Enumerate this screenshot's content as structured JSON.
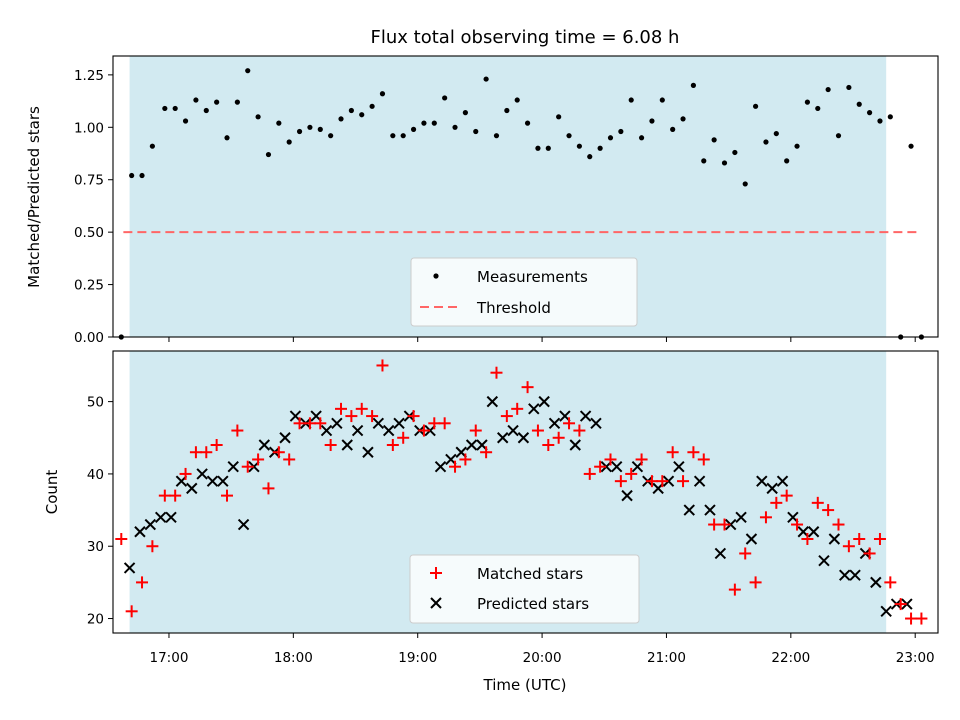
{
  "chart_data": [
    {
      "type": "scatter",
      "title": "Flux total observing time = 6.08 h",
      "xlabel": "",
      "ylabel": "Matched/Predicted stars",
      "ylim": [
        0,
        1.34
      ],
      "xlim": [
        "16:33",
        "23:11"
      ],
      "yticks": [
        "0.00",
        "0.25",
        "0.50",
        "0.75",
        "1.00",
        "1.25"
      ],
      "ytick_values": [
        0,
        0.25,
        0.5,
        0.75,
        1.0,
        1.25
      ],
      "observing_window": {
        "start": "16:41",
        "end": "22:46",
        "color": "#add8e6"
      },
      "legend": {
        "position": "lower center",
        "entries": [
          "Measurements",
          "Threshold"
        ]
      },
      "threshold": {
        "name": "Threshold",
        "y": 0.5,
        "x_start": "16:38",
        "x_end": "23:02",
        "color": "#ff6666"
      },
      "series": [
        {
          "name": "Measurements",
          "color": "#000000",
          "x": [
            "16:37",
            "16:42",
            "16:47",
            "16:52",
            "16:58",
            "17:03",
            "17:08",
            "17:13",
            "17:18",
            "17:23",
            "17:28",
            "17:33",
            "17:38",
            "17:43",
            "17:48",
            "17:53",
            "17:58",
            "18:03",
            "18:08",
            "18:13",
            "18:18",
            "18:23",
            "18:28",
            "18:33",
            "18:38",
            "18:43",
            "18:48",
            "18:53",
            "18:58",
            "19:03",
            "19:08",
            "19:13",
            "19:18",
            "19:23",
            "19:28",
            "19:33",
            "19:38",
            "19:43",
            "19:48",
            "19:53",
            "19:58",
            "20:03",
            "20:08",
            "20:13",
            "20:18",
            "20:23",
            "20:28",
            "20:33",
            "20:38",
            "20:43",
            "20:48",
            "20:53",
            "20:58",
            "21:03",
            "21:08",
            "21:13",
            "21:18",
            "21:23",
            "21:28",
            "21:33",
            "21:38",
            "21:43",
            "21:48",
            "21:53",
            "21:58",
            "22:03",
            "22:08",
            "22:13",
            "22:18",
            "22:23",
            "22:28",
            "22:33",
            "22:38",
            "22:43",
            "22:48",
            "22:53",
            "22:58",
            "23:03"
          ],
          "y": [
            0.0,
            0.77,
            0.77,
            0.91,
            1.09,
            1.09,
            1.03,
            1.13,
            1.08,
            1.12,
            0.95,
            1.12,
            1.27,
            1.05,
            0.87,
            1.02,
            0.93,
            0.98,
            1.0,
            0.99,
            0.96,
            1.04,
            1.08,
            1.06,
            1.1,
            1.16,
            0.96,
            0.96,
            0.99,
            1.02,
            1.02,
            1.14,
            1.0,
            1.07,
            0.98,
            1.23,
            0.96,
            1.08,
            1.13,
            1.02,
            0.9,
            0.9,
            1.05,
            0.96,
            0.91,
            0.86,
            0.9,
            0.95,
            0.98,
            1.13,
            0.95,
            1.03,
            1.13,
            0.99,
            1.04,
            1.2,
            0.84,
            0.94,
            0.83,
            0.88,
            0.73,
            1.1,
            0.93,
            0.97,
            0.84,
            0.91,
            1.12,
            1.09,
            1.18,
            0.96,
            1.19,
            1.11,
            1.07,
            1.03,
            1.05,
            0.0,
            0.91,
            0.0
          ]
        }
      ]
    },
    {
      "type": "scatter",
      "title": "",
      "xlabel": "Time (UTC)",
      "ylabel": "Count",
      "ylim": [
        18,
        57
      ],
      "xlim": [
        "16:33",
        "23:11"
      ],
      "yticks": [
        "20",
        "30",
        "40",
        "50"
      ],
      "ytick_values": [
        20,
        30,
        40,
        50
      ],
      "xticks": [
        "17:00",
        "18:00",
        "19:00",
        "20:00",
        "21:00",
        "22:00",
        "23:00"
      ],
      "observing_window": {
        "start": "16:41",
        "end": "22:46",
        "color": "#add8e6"
      },
      "legend": {
        "position": "lower center",
        "entries": [
          "Matched stars",
          "Predicted stars"
        ]
      },
      "series": [
        {
          "name": "Matched stars",
          "marker": "plus",
          "color": "#ff0000",
          "x": [
            "16:37",
            "16:42",
            "16:47",
            "16:52",
            "16:58",
            "17:03",
            "17:08",
            "17:13",
            "17:18",
            "17:23",
            "17:28",
            "17:33",
            "17:38",
            "17:43",
            "17:48",
            "17:53",
            "17:58",
            "18:03",
            "18:08",
            "18:13",
            "18:18",
            "18:23",
            "18:28",
            "18:33",
            "18:38",
            "18:43",
            "18:48",
            "18:53",
            "18:58",
            "19:03",
            "19:08",
            "19:13",
            "19:18",
            "19:23",
            "19:28",
            "19:33",
            "19:38",
            "19:43",
            "19:48",
            "19:53",
            "19:58",
            "20:03",
            "20:08",
            "20:13",
            "20:18",
            "20:23",
            "20:28",
            "20:33",
            "20:38",
            "20:43",
            "20:48",
            "20:53",
            "20:58",
            "21:03",
            "21:08",
            "21:13",
            "21:18",
            "21:23",
            "21:28",
            "21:33",
            "21:38",
            "21:43",
            "21:48",
            "21:53",
            "21:58",
            "22:03",
            "22:08",
            "22:13",
            "22:18",
            "22:23",
            "22:28",
            "22:33",
            "22:38",
            "22:43",
            "22:48",
            "22:53",
            "22:58",
            "23:03"
          ],
          "y": [
            31,
            21,
            25,
            30,
            37,
            37,
            40,
            43,
            43,
            44,
            37,
            46,
            41,
            42,
            38,
            43,
            42,
            47,
            47,
            47,
            44,
            49,
            48,
            49,
            48,
            55,
            44,
            45,
            48,
            46,
            47,
            47,
            41,
            42,
            46,
            43,
            54,
            48,
            49,
            52,
            46,
            44,
            45,
            47,
            46,
            40,
            41,
            42,
            39,
            40,
            42,
            39,
            39,
            43,
            39,
            43,
            42,
            33,
            33,
            24,
            29,
            25,
            34,
            36,
            37,
            33,
            31,
            36,
            35,
            33,
            30,
            31,
            29,
            31,
            25,
            22,
            20,
            20
          ]
        },
        {
          "name": "Predicted stars",
          "marker": "x",
          "color": "#000000",
          "x": [
            "16:41",
            "16:46",
            "16:51",
            "16:56",
            "17:01",
            "17:06",
            "17:11",
            "17:16",
            "17:21",
            "17:26",
            "17:31",
            "17:36",
            "17:41",
            "17:46",
            "17:51",
            "17:56",
            "18:01",
            "18:06",
            "18:11",
            "18:16",
            "18:21",
            "18:26",
            "18:31",
            "18:36",
            "18:41",
            "18:46",
            "18:51",
            "18:56",
            "19:01",
            "19:06",
            "19:11",
            "19:16",
            "19:21",
            "19:26",
            "19:31",
            "19:36",
            "19:41",
            "19:46",
            "19:51",
            "19:56",
            "20:01",
            "20:06",
            "20:11",
            "20:16",
            "20:21",
            "20:26",
            "20:31",
            "20:36",
            "20:41",
            "20:46",
            "20:51",
            "20:56",
            "21:01",
            "21:06",
            "21:11",
            "21:16",
            "21:21",
            "21:26",
            "21:31",
            "21:36",
            "21:41",
            "21:46",
            "21:51",
            "21:56",
            "22:01",
            "22:06",
            "22:11",
            "22:16",
            "22:21",
            "22:26",
            "22:31",
            "22:36",
            "22:41",
            "22:46",
            "22:51",
            "22:56"
          ],
          "y": [
            27,
            32,
            33,
            34,
            34,
            39,
            38,
            40,
            39,
            39,
            41,
            33,
            41,
            44,
            43,
            45,
            48,
            47,
            48,
            46,
            47,
            44,
            46,
            43,
            47,
            46,
            47,
            48,
            46,
            46,
            41,
            42,
            43,
            44,
            44,
            50,
            45,
            46,
            45,
            49,
            50,
            47,
            48,
            44,
            48,
            47,
            41,
            41,
            37,
            41,
            39,
            38,
            39,
            41,
            35,
            39,
            35,
            29,
            33,
            34,
            31,
            39,
            38,
            39,
            34,
            32,
            32,
            28,
            31,
            26,
            26,
            29,
            25,
            21,
            22,
            22
          ]
        }
      ]
    }
  ]
}
